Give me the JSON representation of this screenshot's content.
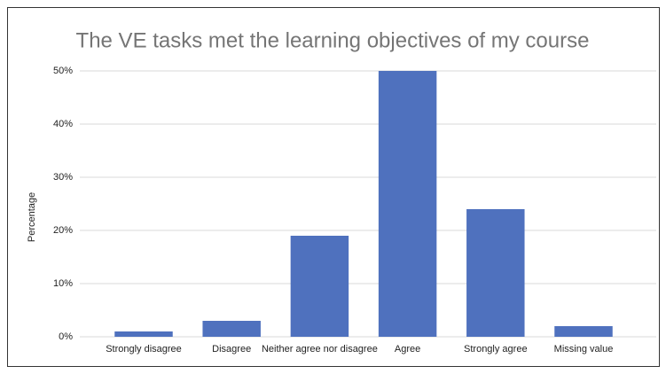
{
  "chart_data": {
    "type": "bar",
    "title": "The VE tasks met the learning objectives of my course",
    "y_label": "Percentage",
    "categories": [
      "Strongly disagree",
      "Disagree",
      "Neither agree nor disagree",
      "Agree",
      "Strongly agree",
      "Missing value"
    ],
    "values": [
      1,
      3,
      19,
      50,
      24,
      2
    ],
    "color": "#4f71be",
    "ylim": [
      0,
      50
    ],
    "yticks": [
      {
        "value": 0,
        "label": "0%"
      },
      {
        "value": 10,
        "label": "10%"
      },
      {
        "value": 20,
        "label": "20%"
      },
      {
        "value": 30,
        "label": "30%"
      },
      {
        "value": 40,
        "label": "40%"
      },
      {
        "value": 50,
        "label": "50%"
      }
    ],
    "grid": true
  }
}
